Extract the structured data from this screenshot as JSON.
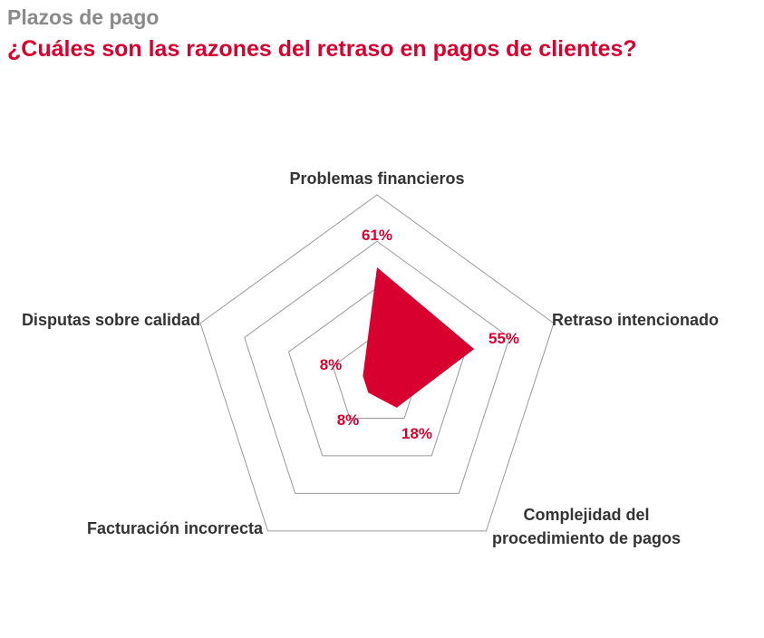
{
  "header": {
    "subtitle": "Plazos de pago",
    "title": "¿Cuáles son las razones del retraso en pagos de clientes?"
  },
  "chart_data": {
    "type": "radar",
    "title": "¿Cuáles son las razones del retraso en pagos de clientes?",
    "categories": [
      "Problemas financieros",
      "Retraso intencionado",
      "Complejidad del procedimiento de pagos",
      "Facturación incorrecta",
      "Disputas sobre calidad"
    ],
    "category_lines": [
      [
        "Problemas financieros"
      ],
      [
        "Retraso intencionado"
      ],
      [
        "Complejidad del",
        "procedimiento de pagos"
      ],
      [
        "Facturación incorrecta"
      ],
      [
        "Disputas sobre calidad"
      ]
    ],
    "values": [
      61,
      55,
      18,
      8,
      8
    ],
    "value_labels": [
      "61%",
      "55%",
      "18%",
      "8%",
      "8%"
    ],
    "unit": "%",
    "rlim": [
      0,
      100
    ],
    "grid_levels": 4,
    "colors": {
      "fill": "#d8002e",
      "grid": "#999999",
      "labels": "#d8002e",
      "axis_text": "#333333",
      "subtitle": "#8a8a8a"
    }
  }
}
